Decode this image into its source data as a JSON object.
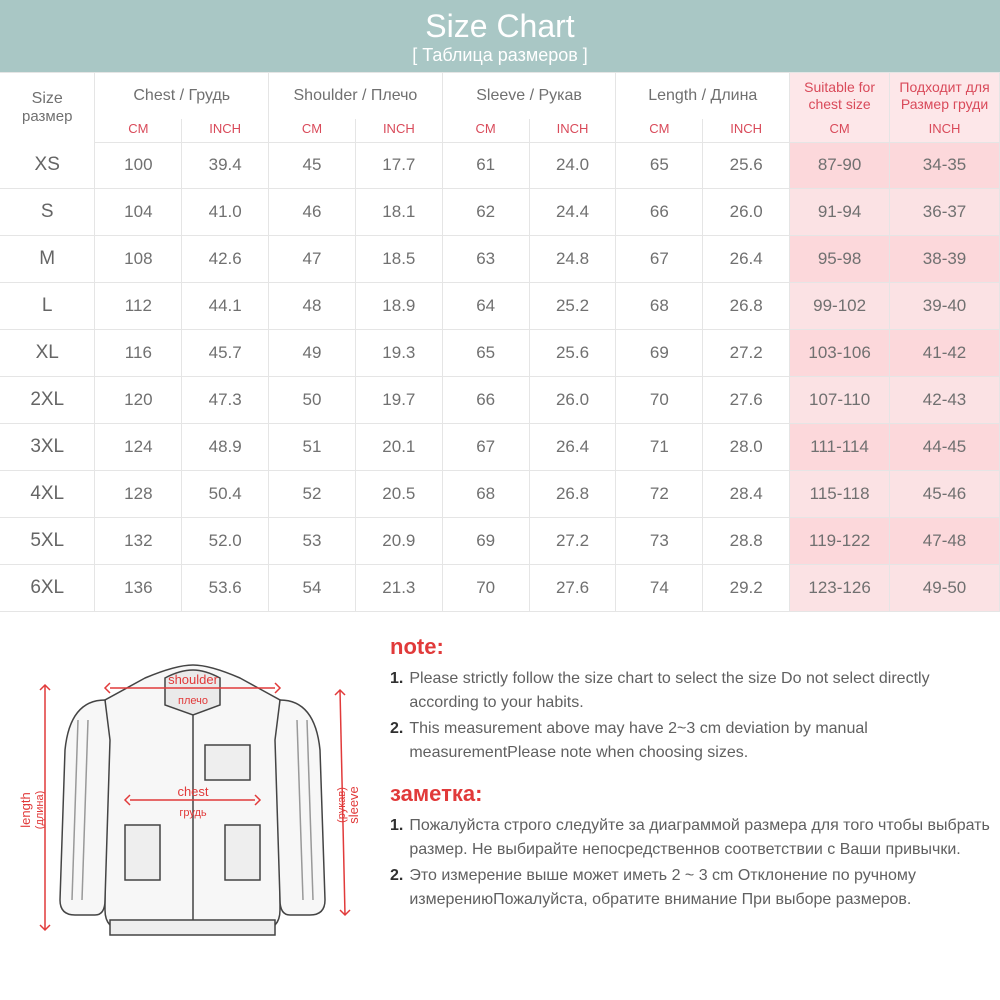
{
  "header": {
    "title": "Size Chart",
    "subtitle": "[ Таблица размеров ]"
  },
  "columns": {
    "size": {
      "label": "Size",
      "sub": "размер"
    },
    "chest": {
      "label": "Chest / Грудь"
    },
    "shoulder": {
      "label": "Shoulder / Плечо"
    },
    "sleeve": {
      "label": "Sleeve / Рукав"
    },
    "length": {
      "label": "Length / Длина"
    },
    "suitable1": "Suitable for chest size",
    "suitable2": "Подходит для Размер груди",
    "cm": "CM",
    "inch": "INCH"
  },
  "rows": [
    {
      "size": "XS",
      "chest_cm": "100",
      "chest_in": "39.4",
      "sh_cm": "45",
      "sh_in": "17.7",
      "sl_cm": "61",
      "sl_in": "24.0",
      "len_cm": "65",
      "len_in": "25.6",
      "suit_cm": "87-90",
      "suit_in": "34-35"
    },
    {
      "size": "S",
      "chest_cm": "104",
      "chest_in": "41.0",
      "sh_cm": "46",
      "sh_in": "18.1",
      "sl_cm": "62",
      "sl_in": "24.4",
      "len_cm": "66",
      "len_in": "26.0",
      "suit_cm": "91-94",
      "suit_in": "36-37"
    },
    {
      "size": "M",
      "chest_cm": "108",
      "chest_in": "42.6",
      "sh_cm": "47",
      "sh_in": "18.5",
      "sl_cm": "63",
      "sl_in": "24.8",
      "len_cm": "67",
      "len_in": "26.4",
      "suit_cm": "95-98",
      "suit_in": "38-39"
    },
    {
      "size": "L",
      "chest_cm": "112",
      "chest_in": "44.1",
      "sh_cm": "48",
      "sh_in": "18.9",
      "sl_cm": "64",
      "sl_in": "25.2",
      "len_cm": "68",
      "len_in": "26.8",
      "suit_cm": "99-102",
      "suit_in": "39-40"
    },
    {
      "size": "XL",
      "chest_cm": "116",
      "chest_in": "45.7",
      "sh_cm": "49",
      "sh_in": "19.3",
      "sl_cm": "65",
      "sl_in": "25.6",
      "len_cm": "69",
      "len_in": "27.2",
      "suit_cm": "103-106",
      "suit_in": "41-42"
    },
    {
      "size": "2XL",
      "chest_cm": "120",
      "chest_in": "47.3",
      "sh_cm": "50",
      "sh_in": "19.7",
      "sl_cm": "66",
      "sl_in": "26.0",
      "len_cm": "70",
      "len_in": "27.6",
      "suit_cm": "107-110",
      "suit_in": "42-43"
    },
    {
      "size": "3XL",
      "chest_cm": "124",
      "chest_in": "48.9",
      "sh_cm": "51",
      "sh_in": "20.1",
      "sl_cm": "67",
      "sl_in": "26.4",
      "len_cm": "71",
      "len_in": "28.0",
      "suit_cm": "111-114",
      "suit_in": "44-45"
    },
    {
      "size": "4XL",
      "chest_cm": "128",
      "chest_in": "50.4",
      "sh_cm": "52",
      "sh_in": "20.5",
      "sl_cm": "68",
      "sl_in": "26.8",
      "len_cm": "72",
      "len_in": "28.4",
      "suit_cm": "115-118",
      "suit_in": "45-46"
    },
    {
      "size": "5XL",
      "chest_cm": "132",
      "chest_in": "52.0",
      "sh_cm": "53",
      "sh_in": "20.9",
      "sl_cm": "69",
      "sl_in": "27.2",
      "len_cm": "73",
      "len_in": "28.8",
      "suit_cm": "119-122",
      "suit_in": "47-48"
    },
    {
      "size": "6XL",
      "chest_cm": "136",
      "chest_in": "53.6",
      "sh_cm": "54",
      "sh_in": "21.3",
      "sl_cm": "70",
      "sl_in": "27.6",
      "len_cm": "74",
      "len_in": "29.2",
      "suit_cm": "123-126",
      "suit_in": "49-50"
    }
  ],
  "notes": {
    "en_title": "note:",
    "en1": "Please strictly follow the size chart to select the size Do not select directly according to your habits.",
    "en2": "This measurement above may have 2~3 cm deviation by manual measurementPlease note when choosing sizes.",
    "ru_title": "заметка:",
    "ru1": "Пожалуйста строго следуйте за диаграммой размера для того чтобы выбрать размер. Не выбирайте непосредственнов соответствии с Ваши привычки.",
    "ru2": "Это измерение выше может иметь 2 ~ 3 cm Отклонение по ручному измерениюПожалуйста, обратите внимание При выборе размеров."
  },
  "diagram": {
    "shoulder": "shoulder",
    "shoulder_ru": "плечо",
    "chest": "chest",
    "chest_ru": "грудь",
    "length": "length",
    "length_ru": "(длина)",
    "sleeve": "sleeve",
    "sleeve_ru": "(рукав)"
  },
  "colors": {
    "header_bg": "#a9c7c5",
    "red": "#d94a5a",
    "pink": "#fcd8db",
    "text": "#707070"
  }
}
